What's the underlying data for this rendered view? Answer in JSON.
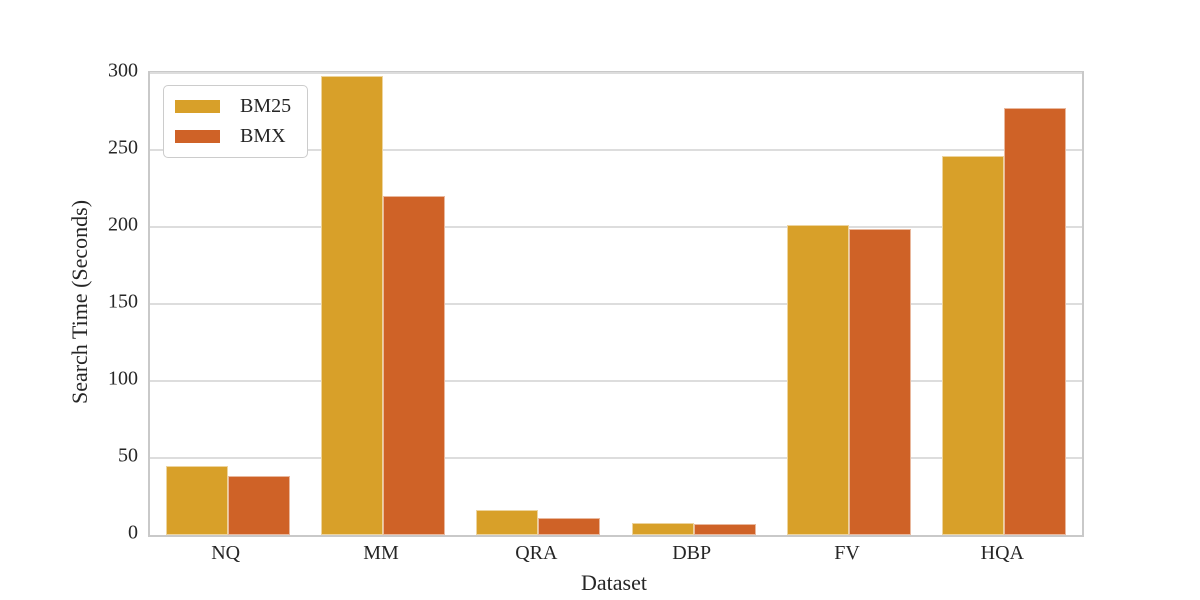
{
  "chart_data": {
    "type": "bar",
    "title": "",
    "xlabel": "Dataset",
    "ylabel": "Search Time (Seconds)",
    "categories": [
      "NQ",
      "MM",
      "QRA",
      "DBP",
      "FV",
      "HQA"
    ],
    "series": [
      {
        "name": "BM25",
        "color": "#D8A029",
        "values": [
          45,
          298,
          16,
          8,
          201,
          246
        ]
      },
      {
        "name": "BMX",
        "color": "#CF6227",
        "values": [
          38,
          220,
          11,
          7,
          199,
          277
        ]
      }
    ],
    "ylim": [
      0,
      300
    ],
    "yticks": [
      0,
      50,
      100,
      150,
      200,
      250,
      300
    ],
    "grid": true,
    "legend_position": "upper-left"
  },
  "colors": {
    "background": "#FFFFFF",
    "grid": "#DDDDDD",
    "spine": "#C9C9C9",
    "text": "#262626",
    "legend_border": "#CCCCCC"
  }
}
